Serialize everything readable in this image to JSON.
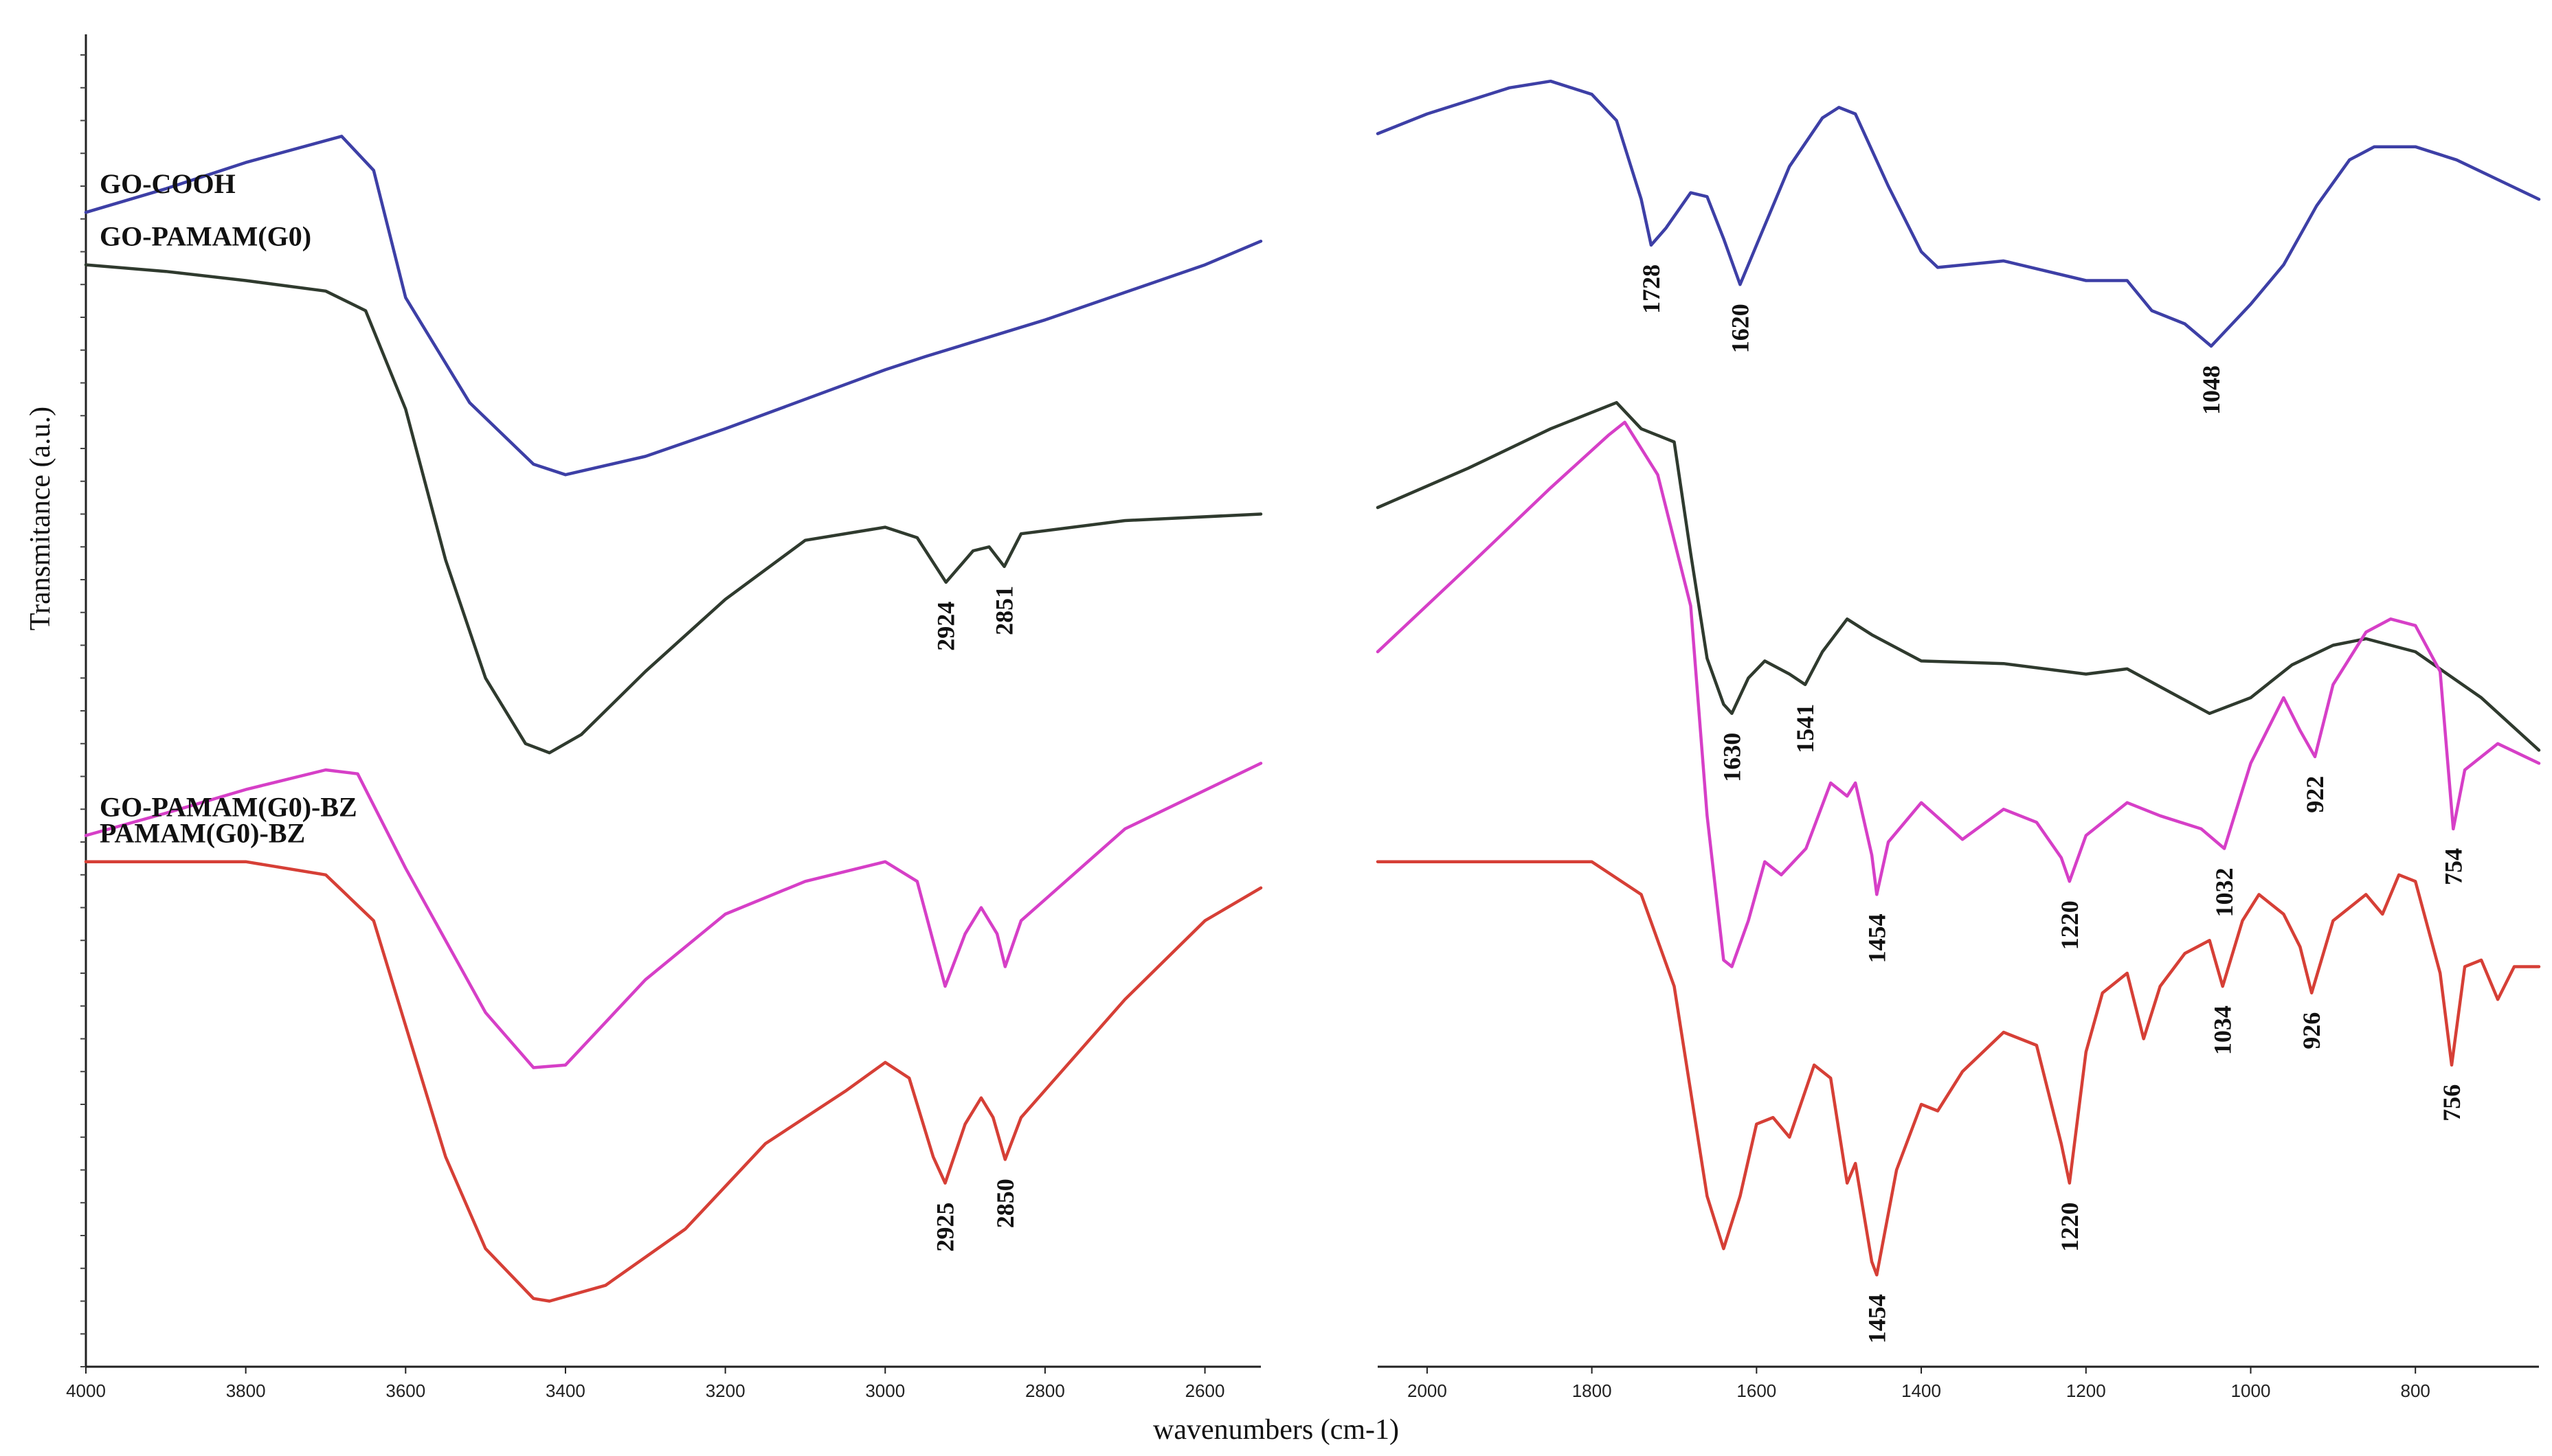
{
  "chart_data": {
    "type": "line",
    "title": "",
    "xlabel": "wavenumbers (cm-1)",
    "ylabel": "Transmitance (a.u.)",
    "panels": [
      {
        "name": "left",
        "xlim": [
          4000,
          2530
        ],
        "x_ticks": [
          "4000",
          "3800",
          "3600",
          "3400",
          "3200",
          "3000",
          "2800",
          "2600"
        ],
        "x_tick_values": [
          4000,
          3800,
          3600,
          3400,
          3200,
          3000,
          2800,
          2600
        ]
      },
      {
        "name": "right",
        "xlim": [
          2060,
          650
        ],
        "x_ticks": [
          "2000",
          "1800",
          "1600",
          "1400",
          "1200",
          "1000",
          "800"
        ],
        "x_tick_values": [
          2000,
          1800,
          1600,
          1400,
          1200,
          1000,
          800
        ]
      }
    ],
    "ylim": [
      0,
      10
    ],
    "series": [
      {
        "name": "GO-COOH",
        "color": "#3d3fa6",
        "left": [
          [
            4000,
            8.8
          ],
          [
            3900,
            8.98
          ],
          [
            3800,
            9.18
          ],
          [
            3680,
            9.38
          ],
          [
            3640,
            9.12
          ],
          [
            3600,
            8.15
          ],
          [
            3520,
            7.35
          ],
          [
            3440,
            6.88
          ],
          [
            3400,
            6.8
          ],
          [
            3300,
            6.94
          ],
          [
            3200,
            7.15
          ],
          [
            3000,
            7.6
          ],
          [
            2950,
            7.7
          ],
          [
            2800,
            7.98
          ],
          [
            2600,
            8.4
          ],
          [
            2530,
            8.58
          ]
        ],
        "right": [
          [
            2060,
            9.4
          ],
          [
            2000,
            9.55
          ],
          [
            1900,
            9.75
          ],
          [
            1850,
            9.8
          ],
          [
            1800,
            9.7
          ],
          [
            1770,
            9.5
          ],
          [
            1740,
            8.9
          ],
          [
            1728,
            8.55
          ],
          [
            1710,
            8.68
          ],
          [
            1680,
            8.95
          ],
          [
            1660,
            8.92
          ],
          [
            1640,
            8.6
          ],
          [
            1620,
            8.25
          ],
          [
            1600,
            8.55
          ],
          [
            1560,
            9.15
          ],
          [
            1520,
            9.52
          ],
          [
            1500,
            9.6
          ],
          [
            1480,
            9.55
          ],
          [
            1440,
            9.0
          ],
          [
            1400,
            8.5
          ],
          [
            1380,
            8.38
          ],
          [
            1300,
            8.43
          ],
          [
            1200,
            8.28
          ],
          [
            1150,
            8.28
          ],
          [
            1120,
            8.05
          ],
          [
            1080,
            7.95
          ],
          [
            1048,
            7.78
          ],
          [
            1000,
            8.1
          ],
          [
            960,
            8.4
          ],
          [
            920,
            8.85
          ],
          [
            880,
            9.2
          ],
          [
            850,
            9.3
          ],
          [
            800,
            9.3
          ],
          [
            750,
            9.2
          ],
          [
            700,
            9.05
          ],
          [
            650,
            8.9
          ]
        ],
        "peaks": [
          {
            "panel": "right",
            "x": 1728,
            "label": "1728"
          },
          {
            "panel": "right",
            "x": 1620,
            "label": "1620"
          },
          {
            "panel": "right",
            "x": 1048,
            "label": "1048"
          }
        ]
      },
      {
        "name": "GO-PAMAM(G0)",
        "color": "#2f3a2e",
        "left": [
          [
            4000,
            8.4
          ],
          [
            3900,
            8.35
          ],
          [
            3800,
            8.28
          ],
          [
            3700,
            8.2
          ],
          [
            3650,
            8.05
          ],
          [
            3600,
            7.3
          ],
          [
            3550,
            6.15
          ],
          [
            3500,
            5.25
          ],
          [
            3450,
            4.75
          ],
          [
            3420,
            4.68
          ],
          [
            3380,
            4.82
          ],
          [
            3300,
            5.3
          ],
          [
            3200,
            5.85
          ],
          [
            3100,
            6.3
          ],
          [
            3000,
            6.4
          ],
          [
            2960,
            6.32
          ],
          [
            2924,
            5.98
          ],
          [
            2890,
            6.22
          ],
          [
            2870,
            6.25
          ],
          [
            2851,
            6.1
          ],
          [
            2830,
            6.35
          ],
          [
            2700,
            6.45
          ],
          [
            2530,
            6.5
          ]
        ],
        "right": [
          [
            2060,
            6.55
          ],
          [
            1950,
            6.85
          ],
          [
            1850,
            7.15
          ],
          [
            1770,
            7.35
          ],
          [
            1740,
            7.15
          ],
          [
            1700,
            7.05
          ],
          [
            1680,
            6.2
          ],
          [
            1660,
            5.4
          ],
          [
            1640,
            5.05
          ],
          [
            1630,
            4.98
          ],
          [
            1610,
            5.25
          ],
          [
            1590,
            5.38
          ],
          [
            1560,
            5.28
          ],
          [
            1541,
            5.2
          ],
          [
            1520,
            5.45
          ],
          [
            1490,
            5.7
          ],
          [
            1460,
            5.58
          ],
          [
            1400,
            5.38
          ],
          [
            1300,
            5.36
          ],
          [
            1200,
            5.28
          ],
          [
            1150,
            5.32
          ],
          [
            1100,
            5.15
          ],
          [
            1050,
            4.98
          ],
          [
            1000,
            5.1
          ],
          [
            950,
            5.35
          ],
          [
            900,
            5.5
          ],
          [
            860,
            5.55
          ],
          [
            800,
            5.45
          ],
          [
            720,
            5.1
          ],
          [
            650,
            4.7
          ]
        ],
        "peaks": [
          {
            "panel": "left",
            "x": 2924,
            "label": "2924"
          },
          {
            "panel": "left",
            "x": 2851,
            "label": "2851"
          },
          {
            "panel": "right",
            "x": 1630,
            "label": "1630"
          },
          {
            "panel": "right",
            "x": 1541,
            "label": "1541"
          }
        ]
      },
      {
        "name": "GO-PAMAM(G0)-BZ",
        "color": "#d63fc7",
        "left": [
          [
            4000,
            4.05
          ],
          [
            3900,
            4.22
          ],
          [
            3800,
            4.4
          ],
          [
            3700,
            4.55
          ],
          [
            3660,
            4.52
          ],
          [
            3600,
            3.8
          ],
          [
            3500,
            2.7
          ],
          [
            3440,
            2.28
          ],
          [
            3400,
            2.3
          ],
          [
            3300,
            2.95
          ],
          [
            3200,
            3.45
          ],
          [
            3100,
            3.7
          ],
          [
            3000,
            3.85
          ],
          [
            2960,
            3.7
          ],
          [
            2925,
            2.9
          ],
          [
            2900,
            3.3
          ],
          [
            2880,
            3.5
          ],
          [
            2860,
            3.3
          ],
          [
            2850,
            3.05
          ],
          [
            2830,
            3.4
          ],
          [
            2700,
            4.1
          ],
          [
            2530,
            4.6
          ]
        ],
        "right": [
          [
            2060,
            5.45
          ],
          [
            1950,
            6.1
          ],
          [
            1850,
            6.7
          ],
          [
            1780,
            7.1
          ],
          [
            1760,
            7.2
          ],
          [
            1720,
            6.8
          ],
          [
            1680,
            5.8
          ],
          [
            1660,
            4.2
          ],
          [
            1640,
            3.1
          ],
          [
            1630,
            3.05
          ],
          [
            1610,
            3.4
          ],
          [
            1590,
            3.85
          ],
          [
            1570,
            3.75
          ],
          [
            1540,
            3.95
          ],
          [
            1510,
            4.45
          ],
          [
            1490,
            4.35
          ],
          [
            1480,
            4.45
          ],
          [
            1460,
            3.9
          ],
          [
            1454,
            3.6
          ],
          [
            1440,
            4.0
          ],
          [
            1400,
            4.3
          ],
          [
            1350,
            4.02
          ],
          [
            1300,
            4.25
          ],
          [
            1260,
            4.15
          ],
          [
            1230,
            3.88
          ],
          [
            1220,
            3.7
          ],
          [
            1200,
            4.05
          ],
          [
            1150,
            4.3
          ],
          [
            1110,
            4.2
          ],
          [
            1060,
            4.1
          ],
          [
            1032,
            3.95
          ],
          [
            1000,
            4.6
          ],
          [
            960,
            5.1
          ],
          [
            940,
            4.85
          ],
          [
            922,
            4.65
          ],
          [
            900,
            5.2
          ],
          [
            860,
            5.6
          ],
          [
            830,
            5.7
          ],
          [
            800,
            5.65
          ],
          [
            770,
            5.3
          ],
          [
            754,
            4.1
          ],
          [
            740,
            4.55
          ],
          [
            700,
            4.75
          ],
          [
            650,
            4.6
          ]
        ],
        "peaks": [
          {
            "panel": "right",
            "x": 1454,
            "label": "1454"
          },
          {
            "panel": "right",
            "x": 1220,
            "label": "1220"
          },
          {
            "panel": "right",
            "x": 1032,
            "label": "1032"
          },
          {
            "panel": "right",
            "x": 922,
            "label": "922"
          },
          {
            "panel": "right",
            "x": 754,
            "label": "754"
          }
        ]
      },
      {
        "name": "PAMAM(G0)-BZ",
        "color": "#d63f36",
        "left": [
          [
            4000,
            3.85
          ],
          [
            3800,
            3.85
          ],
          [
            3700,
            3.75
          ],
          [
            3640,
            3.4
          ],
          [
            3600,
            2.6
          ],
          [
            3550,
            1.6
          ],
          [
            3500,
            0.9
          ],
          [
            3440,
            0.52
          ],
          [
            3420,
            0.5
          ],
          [
            3350,
            0.62
          ],
          [
            3250,
            1.05
          ],
          [
            3150,
            1.7
          ],
          [
            3050,
            2.1
          ],
          [
            3000,
            2.32
          ],
          [
            2970,
            2.2
          ],
          [
            2940,
            1.6
          ],
          [
            2925,
            1.4
          ],
          [
            2900,
            1.85
          ],
          [
            2880,
            2.05
          ],
          [
            2865,
            1.9
          ],
          [
            2850,
            1.58
          ],
          [
            2830,
            1.9
          ],
          [
            2700,
            2.8
          ],
          [
            2600,
            3.4
          ],
          [
            2530,
            3.65
          ]
        ],
        "right": [
          [
            2060,
            3.85
          ],
          [
            1900,
            3.85
          ],
          [
            1800,
            3.85
          ],
          [
            1740,
            3.6
          ],
          [
            1700,
            2.9
          ],
          [
            1660,
            1.3
          ],
          [
            1640,
            0.9
          ],
          [
            1620,
            1.3
          ],
          [
            1600,
            1.85
          ],
          [
            1580,
            1.9
          ],
          [
            1560,
            1.75
          ],
          [
            1530,
            2.3
          ],
          [
            1510,
            2.2
          ],
          [
            1490,
            1.4
          ],
          [
            1480,
            1.55
          ],
          [
            1460,
            0.8
          ],
          [
            1454,
            0.7
          ],
          [
            1430,
            1.5
          ],
          [
            1400,
            2.0
          ],
          [
            1380,
            1.95
          ],
          [
            1350,
            2.25
          ],
          [
            1300,
            2.55
          ],
          [
            1260,
            2.45
          ],
          [
            1230,
            1.7
          ],
          [
            1220,
            1.4
          ],
          [
            1200,
            2.4
          ],
          [
            1180,
            2.85
          ],
          [
            1150,
            3.0
          ],
          [
            1130,
            2.5
          ],
          [
            1110,
            2.9
          ],
          [
            1080,
            3.15
          ],
          [
            1050,
            3.25
          ],
          [
            1034,
            2.9
          ],
          [
            1010,
            3.4
          ],
          [
            990,
            3.6
          ],
          [
            960,
            3.45
          ],
          [
            940,
            3.2
          ],
          [
            926,
            2.85
          ],
          [
            900,
            3.4
          ],
          [
            860,
            3.6
          ],
          [
            840,
            3.45
          ],
          [
            820,
            3.75
          ],
          [
            800,
            3.7
          ],
          [
            770,
            3.0
          ],
          [
            756,
            2.3
          ],
          [
            740,
            3.05
          ],
          [
            720,
            3.1
          ],
          [
            700,
            2.8
          ],
          [
            680,
            3.05
          ],
          [
            650,
            3.05
          ]
        ],
        "peaks": [
          {
            "panel": "left",
            "x": 2925,
            "label": "2925"
          },
          {
            "panel": "left",
            "x": 2850,
            "label": "2850"
          },
          {
            "panel": "right",
            "x": 1454,
            "label": "1454"
          },
          {
            "panel": "right",
            "x": 1220,
            "label": "1220"
          },
          {
            "panel": "right",
            "x": 1034,
            "label": "1034"
          },
          {
            "panel": "right",
            "x": 926,
            "label": "926"
          },
          {
            "panel": "right",
            "x": 756,
            "label": "756"
          }
        ]
      }
    ]
  }
}
